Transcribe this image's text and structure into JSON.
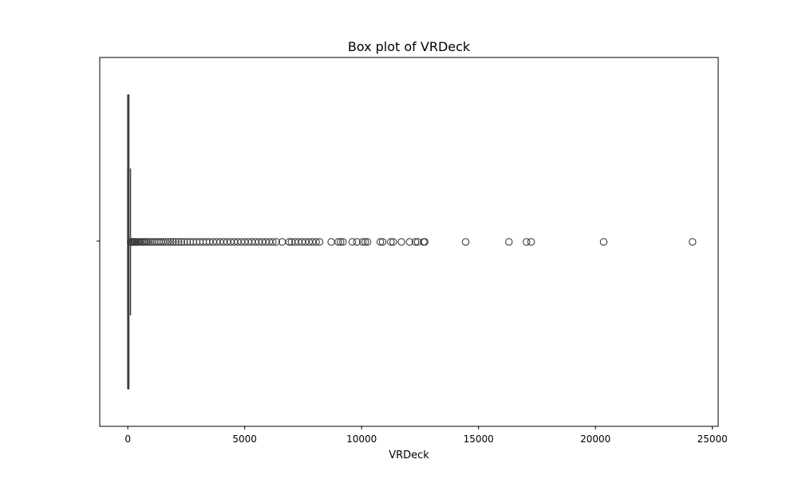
{
  "chart_data": {
    "type": "boxplot",
    "title": "Box plot of VRDeck",
    "xlabel": "VRDeck",
    "ylabel": "",
    "xlim": [
      -1200,
      25250
    ],
    "x_ticks": [
      0,
      5000,
      10000,
      15000,
      20000,
      25000
    ],
    "x_tick_labels": [
      "0",
      "5000",
      "10000",
      "15000",
      "20000",
      "25000"
    ],
    "orientation": "horizontal",
    "box": {
      "min": 0,
      "q1": 0,
      "median": 0,
      "q3": 46,
      "whisker_low": 0,
      "whisker_high": 115
    },
    "outliers": [
      120,
      140,
      160,
      180,
      200,
      230,
      260,
      290,
      320,
      360,
      400,
      450,
      500,
      560,
      620,
      680,
      750,
      820,
      900,
      980,
      1060,
      1150,
      1240,
      1330,
      1420,
      1520,
      1620,
      1720,
      1830,
      1940,
      2050,
      2170,
      2290,
      2410,
      2540,
      2670,
      2800,
      2940,
      3080,
      3220,
      3360,
      3500,
      3650,
      3800,
      3950,
      4100,
      4250,
      4400,
      4550,
      4700,
      4850,
      5000,
      5150,
      5300,
      5450,
      5600,
      5750,
      5900,
      6050,
      6200,
      6350,
      6600,
      6900,
      7000,
      7150,
      7300,
      7450,
      7600,
      7750,
      7900,
      8050,
      8200,
      8700,
      9000,
      9100,
      9200,
      9600,
      9800,
      10050,
      10150,
      10250,
      10800,
      10900,
      11250,
      11350,
      11700,
      12050,
      12300,
      12400,
      12650,
      12700,
      14450,
      16300,
      17050,
      17250,
      20350,
      24150
    ],
    "grid": false,
    "colors": {
      "box_edge": "#3f3f3f",
      "box_fill": "#3274a1",
      "outlier_edge": "#3f3f3f",
      "axes": "#000000"
    }
  }
}
